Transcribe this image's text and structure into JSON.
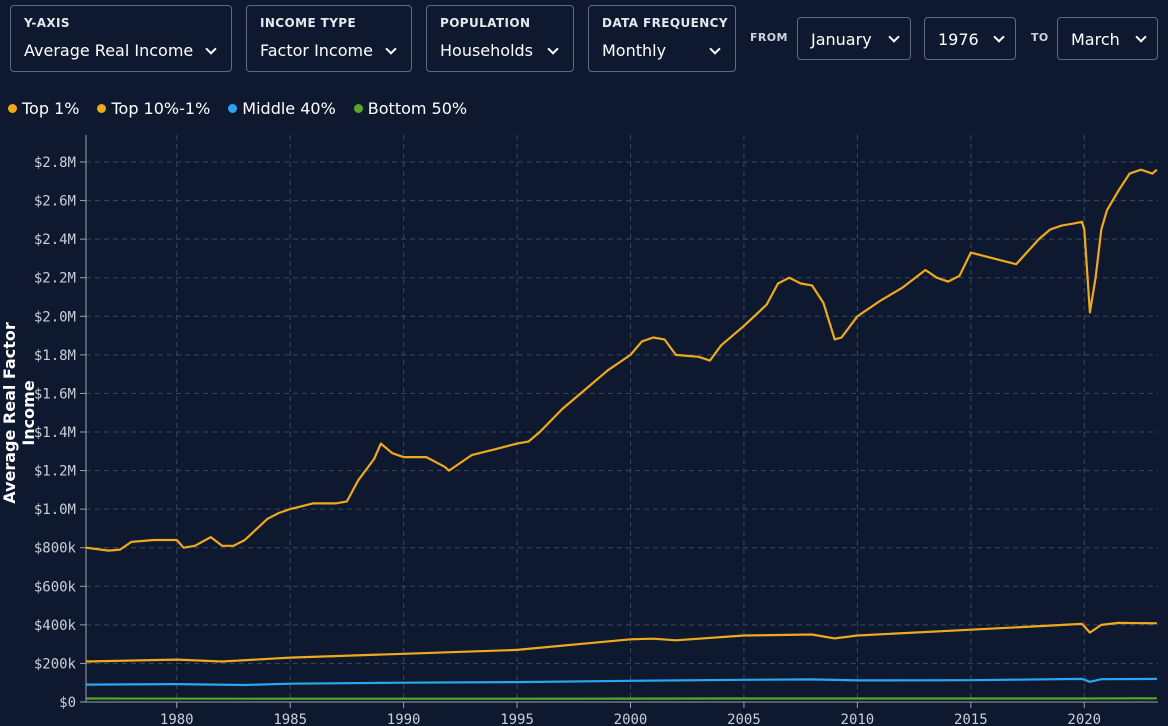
{
  "controls": {
    "y_axis": {
      "label": "Y-AXIS",
      "value": "Average Real Income"
    },
    "income_type": {
      "label": "INCOME TYPE",
      "value": "Factor Income"
    },
    "population": {
      "label": "POPULATION",
      "value": "Households"
    },
    "frequency": {
      "label": "DATA FREQUENCY",
      "value": "Monthly"
    },
    "from_label": "FROM",
    "from_month": "January",
    "from_year": "1976",
    "to_label": "TO",
    "to_month": "March"
  },
  "colors": {
    "background": "#0e1930",
    "top1": "#f0a91c",
    "top10": "#f0a91c",
    "middle40": "#2ba6ee",
    "bottom50": "#5aa52a"
  },
  "chart_data": {
    "type": "line",
    "ylabel": "Average Real Factor Income",
    "xlim": [
      1976,
      2023.25
    ],
    "ylim": [
      0,
      2900000
    ],
    "grid": true,
    "legend_position": "top-left",
    "xticks": [
      1980,
      1985,
      1990,
      1995,
      2000,
      2005,
      2010,
      2015,
      2020
    ],
    "yticks": [
      0,
      200000,
      400000,
      600000,
      800000,
      1000000,
      1200000,
      1400000,
      1600000,
      1800000,
      2000000,
      2200000,
      2400000,
      2600000,
      2800000
    ],
    "ytick_labels": [
      "$0",
      "$200k",
      "$400k",
      "$600k",
      "$800k",
      "$1.0M",
      "$1.2M",
      "$1.4M",
      "$1.6M",
      "$1.8M",
      "$2.0M",
      "$2.2M",
      "$2.4M",
      "$2.6M",
      "$2.8M"
    ],
    "series": [
      {
        "name": "Top 1%",
        "color": "#f0a91c",
        "x": [
          1976,
          1977,
          1977.5,
          1978,
          1979,
          1980,
          1980.3,
          1980.8,
          1981.5,
          1982,
          1982.5,
          1983,
          1984,
          1984.5,
          1985,
          1986,
          1987,
          1987.5,
          1988,
          1988.7,
          1989,
          1989.5,
          1990,
          1991,
          1991.8,
          1992,
          1993,
          1994,
          1995,
          1995.5,
          1996,
          1997,
          1998,
          1999,
          2000,
          2000.5,
          2001,
          2001.5,
          2002,
          2003,
          2003.5,
          2004,
          2005,
          2006,
          2006.5,
          2007,
          2007.5,
          2008,
          2008.5,
          2009,
          2009.3,
          2010,
          2011,
          2012,
          2013,
          2013.5,
          2014,
          2014.5,
          2015,
          2016,
          2017,
          2018,
          2018.5,
          2019,
          2019.5,
          2019.9,
          2020.0,
          2020.25,
          2020.5,
          2020.75,
          2021,
          2021.5,
          2022,
          2022.5,
          2023,
          2023.2
        ],
        "values": [
          800000,
          785000,
          790000,
          830000,
          840000,
          840000,
          800000,
          810000,
          855000,
          810000,
          810000,
          840000,
          950000,
          980000,
          1000000,
          1030000,
          1030000,
          1040000,
          1150000,
          1260000,
          1340000,
          1290000,
          1270000,
          1270000,
          1220000,
          1200000,
          1280000,
          1310000,
          1340000,
          1350000,
          1400000,
          1520000,
          1620000,
          1720000,
          1800000,
          1870000,
          1890000,
          1880000,
          1800000,
          1790000,
          1770000,
          1850000,
          1950000,
          2060000,
          2170000,
          2200000,
          2170000,
          2160000,
          2070000,
          1880000,
          1890000,
          2000000,
          2080000,
          2150000,
          2240000,
          2200000,
          2180000,
          2210000,
          2330000,
          2300000,
          2270000,
          2400000,
          2450000,
          2470000,
          2480000,
          2490000,
          2450000,
          2020000,
          2200000,
          2450000,
          2550000,
          2650000,
          2740000,
          2760000,
          2740000,
          2760000
        ]
      },
      {
        "name": "Top 10%-1%",
        "color": "#f0a91c",
        "x": [
          1976,
          1980,
          1982,
          1985,
          1990,
          1995,
          2000,
          2001,
          2002,
          2005,
          2008,
          2009,
          2010,
          2015,
          2019.9,
          2020.25,
          2020.75,
          2021.5,
          2023.2
        ],
        "values": [
          210000,
          220000,
          210000,
          230000,
          250000,
          270000,
          325000,
          328000,
          320000,
          345000,
          350000,
          330000,
          345000,
          375000,
          405000,
          360000,
          400000,
          410000,
          408000
        ]
      },
      {
        "name": "Middle 40%",
        "color": "#2ba6ee",
        "x": [
          1976,
          1980,
          1983,
          1985,
          1990,
          1995,
          2000,
          2005,
          2008,
          2010,
          2015,
          2019.9,
          2020.25,
          2020.75,
          2023.2
        ],
        "values": [
          90000,
          93000,
          88000,
          95000,
          100000,
          103000,
          110000,
          115000,
          117000,
          112000,
          113000,
          120000,
          105000,
          118000,
          120000
        ]
      },
      {
        "name": "Bottom 50%",
        "color": "#5aa52a",
        "x": [
          1976,
          1985,
          1995,
          2005,
          2015,
          2020,
          2023.2
        ],
        "values": [
          18000,
          17000,
          17000,
          18000,
          18000,
          18000,
          19000
        ]
      }
    ]
  }
}
